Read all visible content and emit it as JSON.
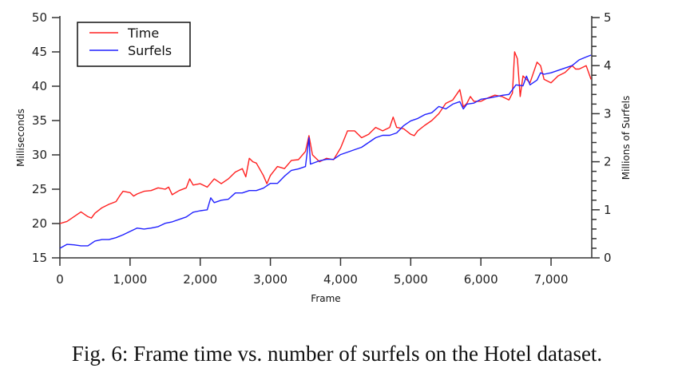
{
  "chart_data": {
    "type": "line",
    "title": "",
    "xlabel": "Frame",
    "ylabel": "Milliseconds",
    "y2label": "Millions of Surfels",
    "xlim": [
      0,
      7580
    ],
    "ylim": [
      15,
      50
    ],
    "y2lim": [
      0,
      5
    ],
    "xticks": [
      0,
      1000,
      2000,
      3000,
      4000,
      5000,
      6000,
      7000
    ],
    "xtick_labels": [
      "0",
      "1,000",
      "2,000",
      "3,000",
      "4,000",
      "5,000",
      "6,000",
      "7,000"
    ],
    "yticks": [
      15,
      20,
      25,
      30,
      35,
      40,
      45,
      50
    ],
    "y2ticks": [
      0,
      1,
      2,
      3,
      4,
      5
    ],
    "grid": false,
    "legend": "top-left",
    "series": [
      {
        "name": "Time",
        "axis": "left",
        "color": "#ff2020",
        "x": [
          0,
          100,
          200,
          300,
          400,
          450,
          500,
          600,
          700,
          800,
          850,
          900,
          1000,
          1050,
          1100,
          1200,
          1300,
          1400,
          1500,
          1550,
          1600,
          1700,
          1800,
          1850,
          1900,
          2000,
          2100,
          2200,
          2300,
          2400,
          2500,
          2600,
          2650,
          2700,
          2750,
          2800,
          2900,
          2950,
          3000,
          3100,
          3200,
          3300,
          3400,
          3500,
          3550,
          3600,
          3700,
          3800,
          3900,
          4000,
          4100,
          4200,
          4300,
          4400,
          4450,
          4500,
          4600,
          4700,
          4750,
          4800,
          4900,
          5000,
          5050,
          5100,
          5200,
          5300,
          5400,
          5500,
          5600,
          5700,
          5750,
          5800,
          5850,
          5900,
          6000,
          6100,
          6200,
          6300,
          6400,
          6450,
          6480,
          6520,
          6560,
          6600,
          6700,
          6800,
          6850,
          6900,
          7000,
          7100,
          7200,
          7300,
          7350,
          7400,
          7500,
          7570
        ],
        "y": [
          20,
          20.3,
          21,
          21.7,
          21,
          20.8,
          21.5,
          22.3,
          22.8,
          23.2,
          24,
          24.7,
          24.5,
          24,
          24.3,
          24.7,
          24.8,
          25.2,
          25,
          25.3,
          24.2,
          24.8,
          25.2,
          26.5,
          25.6,
          25.8,
          25.3,
          26.5,
          25.8,
          26.5,
          27.5,
          28,
          26.8,
          29.5,
          29,
          28.8,
          27,
          25.8,
          27,
          28.3,
          28,
          29.2,
          29.3,
          30.5,
          32.8,
          30,
          29,
          29.5,
          29.3,
          31,
          33.5,
          33.5,
          32.5,
          33,
          33.5,
          34,
          33.5,
          34,
          35.5,
          34,
          33.8,
          33,
          32.8,
          33.5,
          34.3,
          35,
          36,
          37.5,
          38,
          39.5,
          37,
          37.5,
          38.5,
          37.8,
          37.8,
          38.3,
          38.7,
          38.5,
          38,
          39,
          45,
          44,
          38.5,
          41.5,
          40.5,
          43.5,
          43,
          41,
          40.5,
          41.5,
          42,
          43,
          42.5,
          42.5,
          43,
          41
        ]
      },
      {
        "name": "Surfels",
        "axis": "right",
        "color": "#2020ff",
        "x": [
          0,
          100,
          200,
          300,
          400,
          500,
          600,
          700,
          800,
          900,
          1000,
          1100,
          1200,
          1300,
          1400,
          1500,
          1600,
          1700,
          1800,
          1900,
          2000,
          2100,
          2150,
          2200,
          2300,
          2400,
          2500,
          2600,
          2700,
          2800,
          2900,
          3000,
          3100,
          3200,
          3300,
          3400,
          3500,
          3550,
          3570,
          3700,
          3800,
          3900,
          4000,
          4100,
          4200,
          4300,
          4400,
          4500,
          4600,
          4700,
          4800,
          4900,
          5000,
          5100,
          5200,
          5300,
          5400,
          5500,
          5600,
          5700,
          5750,
          5800,
          5900,
          6000,
          6100,
          6200,
          6300,
          6400,
          6500,
          6600,
          6650,
          6700,
          6800,
          6850,
          6900,
          7000,
          7100,
          7200,
          7300,
          7400,
          7500,
          7570
        ],
        "y": [
          0.2,
          0.28,
          0.27,
          0.25,
          0.25,
          0.35,
          0.38,
          0.38,
          0.42,
          0.48,
          0.55,
          0.62,
          0.6,
          0.62,
          0.65,
          0.72,
          0.75,
          0.8,
          0.85,
          0.95,
          0.98,
          1.0,
          1.25,
          1.15,
          1.2,
          1.22,
          1.35,
          1.35,
          1.4,
          1.4,
          1.45,
          1.55,
          1.55,
          1.7,
          1.82,
          1.85,
          1.9,
          2.5,
          1.95,
          2.02,
          2.05,
          2.05,
          2.15,
          2.2,
          2.25,
          2.3,
          2.4,
          2.5,
          2.55,
          2.55,
          2.6,
          2.75,
          2.85,
          2.9,
          2.98,
          3.02,
          3.15,
          3.1,
          3.2,
          3.25,
          3.1,
          3.2,
          3.22,
          3.3,
          3.32,
          3.35,
          3.38,
          3.4,
          3.6,
          3.58,
          3.78,
          3.6,
          3.7,
          3.85,
          3.82,
          3.85,
          3.9,
          3.95,
          4.0,
          4.12,
          4.18,
          4.22
        ]
      }
    ]
  },
  "caption": "Fig. 6: Frame time vs. number of surfels on the Hotel dataset."
}
